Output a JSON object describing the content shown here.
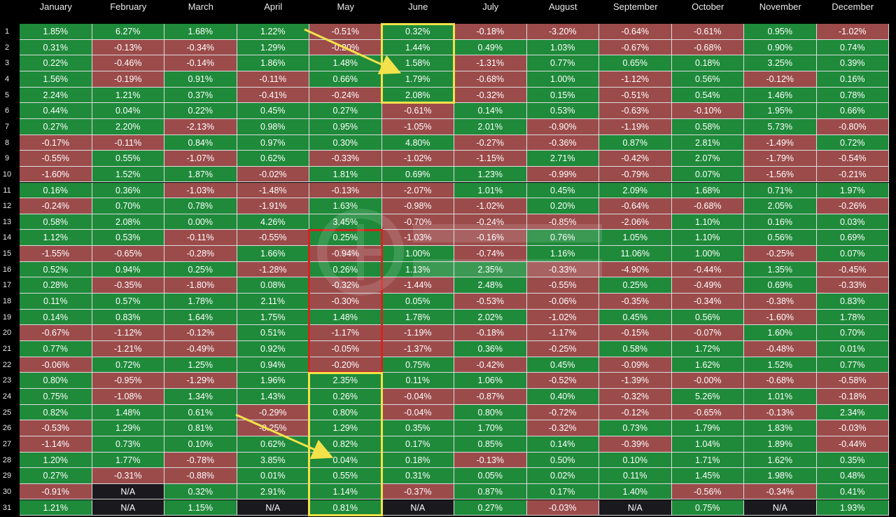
{
  "chart_data": {
    "type": "heatmap",
    "months": [
      "January",
      "February",
      "March",
      "April",
      "May",
      "June",
      "July",
      "August",
      "September",
      "October",
      "November",
      "December"
    ],
    "days": [
      "1",
      "2",
      "3",
      "4",
      "5",
      "6",
      "7",
      "8",
      "9",
      "10",
      "11",
      "12",
      "13",
      "14",
      "15",
      "16",
      "17",
      "18",
      "19",
      "20",
      "21",
      "22",
      "23",
      "24",
      "25",
      "26",
      "27",
      "28",
      "29",
      "30",
      "31"
    ],
    "values": [
      [
        "1.85%",
        "6.27%",
        "1.68%",
        "1.22%",
        "-0.51%",
        "0.32%",
        "-0.18%",
        "-3.20%",
        "-0.64%",
        "-0.61%",
        "0.95%",
        "-1.02%"
      ],
      [
        "0.31%",
        "-0.13%",
        "-0.34%",
        "1.29%",
        "-0.20%",
        "1.44%",
        "0.49%",
        "1.03%",
        "-0.67%",
        "-0.68%",
        "0.90%",
        "0.74%"
      ],
      [
        "0.22%",
        "-0.46%",
        "-0.14%",
        "1.86%",
        "1.48%",
        "1.58%",
        "-1.31%",
        "0.77%",
        "0.65%",
        "0.18%",
        "3.25%",
        "0.39%"
      ],
      [
        "1.56%",
        "-0.19%",
        "0.91%",
        "-0.11%",
        "0.66%",
        "1.79%",
        "-0.68%",
        "1.00%",
        "-1.12%",
        "0.56%",
        "-0.12%",
        "0.16%"
      ],
      [
        "2.24%",
        "1.21%",
        "0.37%",
        "-0.41%",
        "-0.24%",
        "2.08%",
        "-0.32%",
        "0.15%",
        "-0.51%",
        "0.54%",
        "1.46%",
        "0.78%"
      ],
      [
        "0.44%",
        "0.04%",
        "0.22%",
        "0.45%",
        "0.27%",
        "-0.61%",
        "0.14%",
        "0.53%",
        "-0.63%",
        "-0.10%",
        "1.95%",
        "0.66%"
      ],
      [
        "0.27%",
        "2.20%",
        "-2.13%",
        "0.98%",
        "0.95%",
        "-1.05%",
        "2.01%",
        "-0.90%",
        "-1.19%",
        "0.58%",
        "5.73%",
        "-0.80%"
      ],
      [
        "-0.17%",
        "-0.11%",
        "0.84%",
        "0.97%",
        "0.30%",
        "4.80%",
        "-0.27%",
        "-0.36%",
        "0.87%",
        "2.81%",
        "-1.49%",
        "0.72%"
      ],
      [
        "-0.55%",
        "0.55%",
        "-1.07%",
        "0.62%",
        "-0.33%",
        "-1.02%",
        "-1.15%",
        "2.71%",
        "-0.42%",
        "2.07%",
        "-1.79%",
        "-0.54%"
      ],
      [
        "-1.60%",
        "1.52%",
        "1.87%",
        "-0.02%",
        "1.81%",
        "0.69%",
        "1.23%",
        "-0.99%",
        "-0.79%",
        "0.07%",
        "-1.56%",
        "-0.21%"
      ],
      [
        "0.16%",
        "0.36%",
        "-1.03%",
        "-1.48%",
        "-0.13%",
        "-2.07%",
        "1.01%",
        "0.45%",
        "2.09%",
        "1.68%",
        "0.71%",
        "1.97%"
      ],
      [
        "-0.24%",
        "0.70%",
        "0.78%",
        "-1.91%",
        "1.63%",
        "-0.98%",
        "-1.02%",
        "0.20%",
        "-0.64%",
        "-0.68%",
        "2.05%",
        "-0.26%"
      ],
      [
        "0.58%",
        "2.08%",
        "0.00%",
        "4.26%",
        "3.45%",
        "-0.70%",
        "-0.24%",
        "-0.85%",
        "-2.06%",
        "1.10%",
        "0.16%",
        "0.03%"
      ],
      [
        "1.12%",
        "0.53%",
        "-0.11%",
        "-0.55%",
        "0.25%",
        "-1.03%",
        "-0.16%",
        "0.76%",
        "1.05%",
        "1.10%",
        "0.56%",
        "0.69%"
      ],
      [
        "-1.55%",
        "-0.65%",
        "-0.28%",
        "1.66%",
        "-0.94%",
        "1.00%",
        "-0.74%",
        "1.16%",
        "11.06%",
        "1.00%",
        "-0.25%",
        "0.07%"
      ],
      [
        "0.52%",
        "0.94%",
        "0.25%",
        "-1.28%",
        "0.26%",
        "1.13%",
        "2.35%",
        "-0.33%",
        "-4.90%",
        "-0.44%",
        "1.35%",
        "-0.45%"
      ],
      [
        "0.28%",
        "-0.35%",
        "-1.80%",
        "0.08%",
        "-0.32%",
        "-1.44%",
        "2.48%",
        "-0.55%",
        "0.25%",
        "-0.49%",
        "0.69%",
        "-0.33%"
      ],
      [
        "0.11%",
        "0.57%",
        "1.78%",
        "2.11%",
        "-0.30%",
        "0.05%",
        "-0.53%",
        "-0.06%",
        "-0.35%",
        "-0.34%",
        "-0.38%",
        "0.83%"
      ],
      [
        "0.14%",
        "0.83%",
        "1.64%",
        "1.75%",
        "1.48%",
        "1.78%",
        "2.02%",
        "-1.02%",
        "0.45%",
        "0.56%",
        "-1.60%",
        "1.78%"
      ],
      [
        "-0.67%",
        "-1.12%",
        "-0.12%",
        "0.51%",
        "-1.17%",
        "-1.19%",
        "-0.18%",
        "-1.17%",
        "-0.15%",
        "-0.07%",
        "1.60%",
        "0.70%"
      ],
      [
        "0.77%",
        "-1.21%",
        "-0.49%",
        "0.92%",
        "-0.05%",
        "-1.37%",
        "0.36%",
        "-0.25%",
        "0.58%",
        "1.72%",
        "-0.48%",
        "0.01%"
      ],
      [
        "-0.06%",
        "0.72%",
        "1.25%",
        "0.94%",
        "-0.20%",
        "0.75%",
        "-0.42%",
        "0.45%",
        "-0.09%",
        "1.62%",
        "1.52%",
        "0.77%"
      ],
      [
        "0.80%",
        "-0.95%",
        "-1.29%",
        "1.96%",
        "2.35%",
        "0.11%",
        "1.06%",
        "-0.52%",
        "-1.39%",
        "-0.00%",
        "-0.68%",
        "-0.58%"
      ],
      [
        "0.75%",
        "-1.08%",
        "1.34%",
        "1.43%",
        "0.26%",
        "-0.04%",
        "-0.87%",
        "0.40%",
        "-0.32%",
        "5.26%",
        "1.01%",
        "-0.18%"
      ],
      [
        "0.82%",
        "1.48%",
        "0.61%",
        "-0.29%",
        "0.80%",
        "-0.04%",
        "0.80%",
        "-0.72%",
        "-0.12%",
        "-0.65%",
        "-0.13%",
        "2.34%"
      ],
      [
        "-0.53%",
        "1.29%",
        "0.81%",
        "-0.25%",
        "1.29%",
        "0.35%",
        "1.70%",
        "-0.32%",
        "0.73%",
        "1.79%",
        "1.83%",
        "-0.03%"
      ],
      [
        "-1.14%",
        "0.73%",
        "0.10%",
        "0.62%",
        "0.82%",
        "0.17%",
        "0.85%",
        "0.14%",
        "-0.39%",
        "1.04%",
        "1.89%",
        "-0.44%"
      ],
      [
        "1.20%",
        "1.77%",
        "-0.78%",
        "3.85%",
        "0.04%",
        "0.18%",
        "-0.13%",
        "0.50%",
        "0.10%",
        "1.71%",
        "1.62%",
        "0.35%"
      ],
      [
        "0.27%",
        "-0.31%",
        "-0.88%",
        "0.01%",
        "0.55%",
        "0.31%",
        "0.05%",
        "0.02%",
        "0.11%",
        "1.45%",
        "1.98%",
        "0.48%"
      ],
      [
        "-0.91%",
        "N/A",
        "0.32%",
        "2.91%",
        "1.14%",
        "-0.37%",
        "0.87%",
        "0.17%",
        "1.40%",
        "-0.56%",
        "-0.34%",
        "0.41%"
      ],
      [
        "1.21%",
        "N/A",
        "1.15%",
        "N/A",
        "0.81%",
        "N/A",
        "0.27%",
        "-0.03%",
        "N/A",
        "0.75%",
        "N/A",
        "1.93%"
      ]
    ],
    "highlights": [
      {
        "color": "yellow",
        "month": "June",
        "days": [
          1,
          5
        ]
      },
      {
        "color": "red",
        "month": "May",
        "days": [
          14,
          22
        ]
      },
      {
        "color": "yellow",
        "month": "May",
        "days": [
          23,
          31
        ]
      }
    ],
    "colors": {
      "positive": "#1e8a3a",
      "negative": "#9c4b4b",
      "na": "#1a1a1e",
      "highlight_yellow": "#f3e24a",
      "highlight_red": "#d2261f"
    }
  }
}
